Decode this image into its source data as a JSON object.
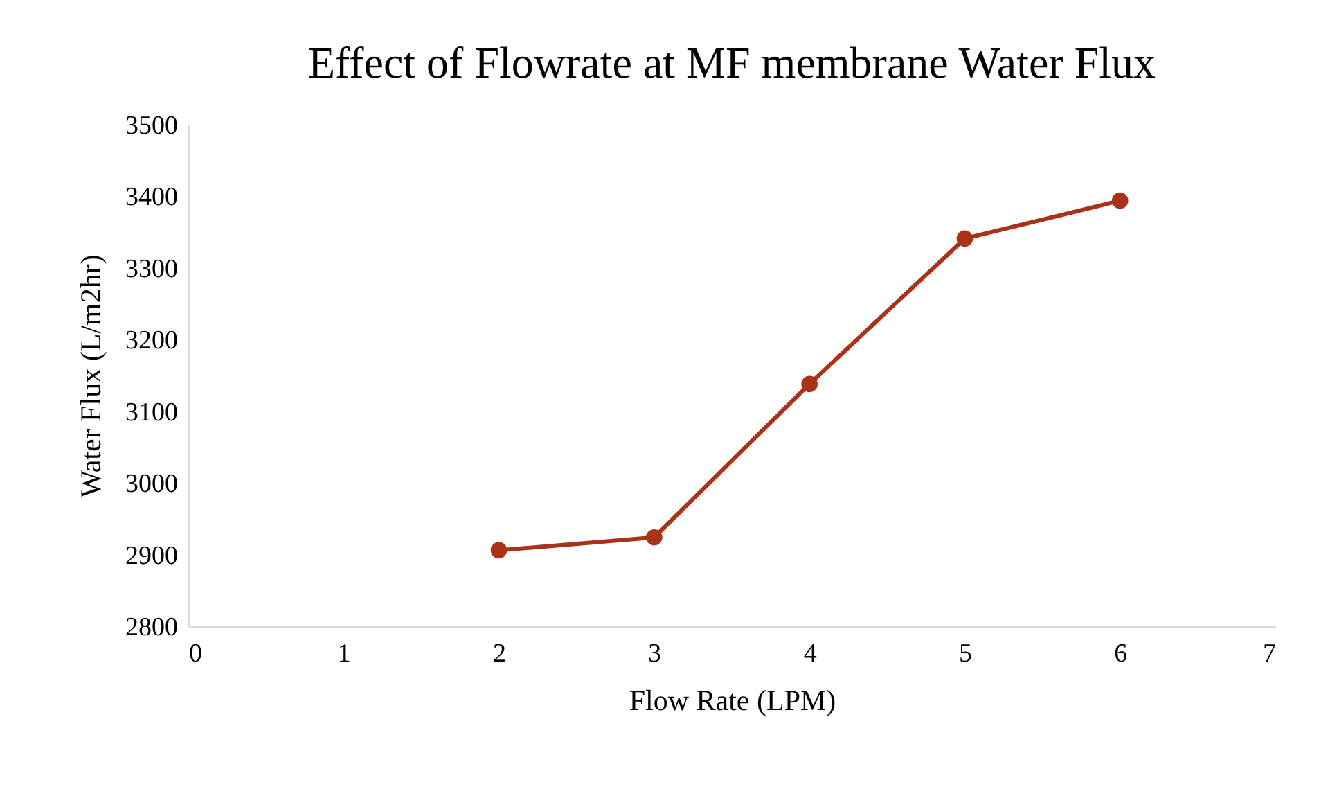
{
  "chart_data": {
    "type": "line",
    "title": "Effect of Flowrate at MF membrane Water Flux",
    "xlabel": "Flow Rate (LPM)",
    "ylabel": "Water Flux (L/m2hr)",
    "x": [
      2,
      3,
      4,
      5,
      6
    ],
    "series": [
      {
        "color": "#a93218",
        "values": [
          2906,
          2924,
          3138,
          3341,
          3394
        ]
      }
    ],
    "xlim": [
      0,
      7
    ],
    "xticks": [
      0,
      1,
      2,
      3,
      4,
      5,
      6,
      7
    ],
    "ylim": [
      2800,
      3500
    ],
    "yticks": [
      2800,
      2900,
      3000,
      3100,
      3200,
      3300,
      3400,
      3500
    ],
    "grid": false,
    "marker": "circle",
    "line_style": "solid"
  }
}
